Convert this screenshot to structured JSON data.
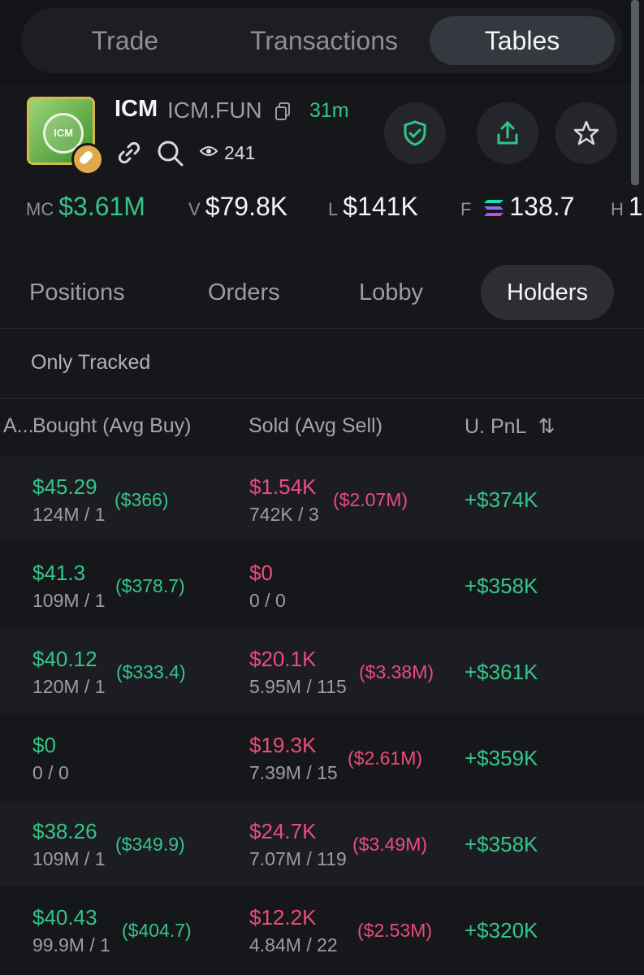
{
  "top_tabs": [
    {
      "label": "Trade",
      "active": false
    },
    {
      "label": "Transactions",
      "active": false
    },
    {
      "label": "Tables",
      "active": true
    }
  ],
  "token": {
    "logo_text": "ICM",
    "symbol": "ICM",
    "name": "ICM.FUN",
    "age": "31m",
    "viewers": "241"
  },
  "stats": {
    "mc_label": "MC",
    "mc_value": "$3.61M",
    "v_label": "V",
    "v_value": "$79.8K",
    "l_label": "L",
    "l_value": "$141K",
    "f_label": "F",
    "f_value": "138.7",
    "h_label": "H",
    "h_value": "1"
  },
  "tabs": [
    {
      "label": "Positions",
      "active": false
    },
    {
      "label": "Orders",
      "active": false
    },
    {
      "label": "Lobby",
      "active": false
    },
    {
      "label": "Holders",
      "active": true
    }
  ],
  "filter_label": "Only Tracked",
  "columns": {
    "first": "A...",
    "bought": "Bought (Avg Buy)",
    "sold": "Sold (Avg Sell)",
    "pnl": "U. PnL",
    "sort_icon": "⇅"
  },
  "rows": [
    {
      "bought": "$45.29",
      "bought_sub": "124M / 1",
      "avg_buy": "($366)",
      "sold": "$1.54K",
      "sold_sub": "742K / 3",
      "avg_sell": "($2.07M)",
      "pnl": "+$374K"
    },
    {
      "bought": "$41.3",
      "bought_sub": "109M / 1",
      "avg_buy": "($378.7)",
      "sold": "$0",
      "sold_sub": "0 / 0",
      "avg_sell": "",
      "pnl": "+$358K"
    },
    {
      "bought": "$40.12",
      "bought_sub": "120M / 1",
      "avg_buy": "($333.4)",
      "sold": "$20.1K",
      "sold_sub": "5.95M / 115",
      "avg_sell": "($3.38M)",
      "pnl": "+$361K"
    },
    {
      "bought": "$0",
      "bought_sub": "0 / 0",
      "avg_buy": "",
      "sold": "$19.3K",
      "sold_sub": "7.39M / 15",
      "avg_sell": "($2.61M)",
      "pnl": "+$359K"
    },
    {
      "bought": "$38.26",
      "bought_sub": "109M / 1",
      "avg_buy": "($349.9)",
      "sold": "$24.7K",
      "sold_sub": "7.07M / 119",
      "avg_sell": "($3.49M)",
      "pnl": "+$358K"
    },
    {
      "bought": "$40.43",
      "bought_sub": "99.9M / 1",
      "avg_buy": "($404.7)",
      "sold": "$12.2K",
      "sold_sub": "4.84M / 22",
      "avg_sell": "($2.53M)",
      "pnl": "+$320K"
    }
  ],
  "colors": {
    "positive": "#34c587",
    "negative": "#ea4c7d",
    "background": "#16171b"
  }
}
